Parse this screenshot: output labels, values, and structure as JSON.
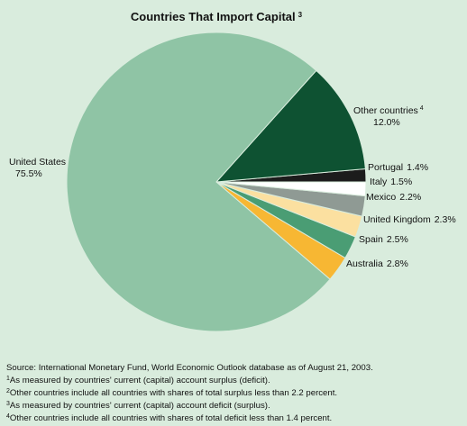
{
  "chart_data": {
    "type": "pie",
    "title": "Countries That Import Capital",
    "title_sup": "3",
    "start_angle_deg": 0,
    "direction": "counterclockwise",
    "slices": [
      {
        "label": "Portugal",
        "value": 1.4,
        "value_text": "1.4%",
        "color": "#1c1c1c",
        "sup": ""
      },
      {
        "label": "Other countries",
        "value": 12.0,
        "value_text": "12.0%",
        "color": "#0e5232",
        "sup": "4"
      },
      {
        "label": "United States",
        "value": 75.5,
        "value_text": "75.5%",
        "color": "#8fc4a5",
        "sup": ""
      },
      {
        "label": "Australia",
        "value": 2.8,
        "value_text": "2.8%",
        "color": "#f7b733",
        "sup": ""
      },
      {
        "label": "Spain",
        "value": 2.5,
        "value_text": "2.5%",
        "color": "#4a9d74",
        "sup": ""
      },
      {
        "label": "United Kingdom",
        "value": 2.3,
        "value_text": "2.3%",
        "color": "#fbe0a0",
        "sup": ""
      },
      {
        "label": "Mexico",
        "value": 2.2,
        "value_text": "2.2%",
        "color": "#8f9a94",
        "sup": ""
      },
      {
        "label": "Italy",
        "value": 1.5,
        "value_text": "1.5%",
        "color": "#ffffff",
        "sup": ""
      }
    ]
  },
  "footnotes": {
    "source": "Source: International Monetary Fund, World Economic Outlook database as of August 21, 2003.",
    "notes": [
      {
        "sup": "1",
        "text": "As measured by countries' current (capital) account surplus (deficit)."
      },
      {
        "sup": "2",
        "text": "Other countries include all countries with shares of total surplus less than 2.2 percent."
      },
      {
        "sup": "3",
        "text": "As measured by countries' current (capital) account deficit (surplus)."
      },
      {
        "sup": "4",
        "text": "Other countries include all countries with shares of total deficit less than 1.4 percent."
      }
    ]
  }
}
